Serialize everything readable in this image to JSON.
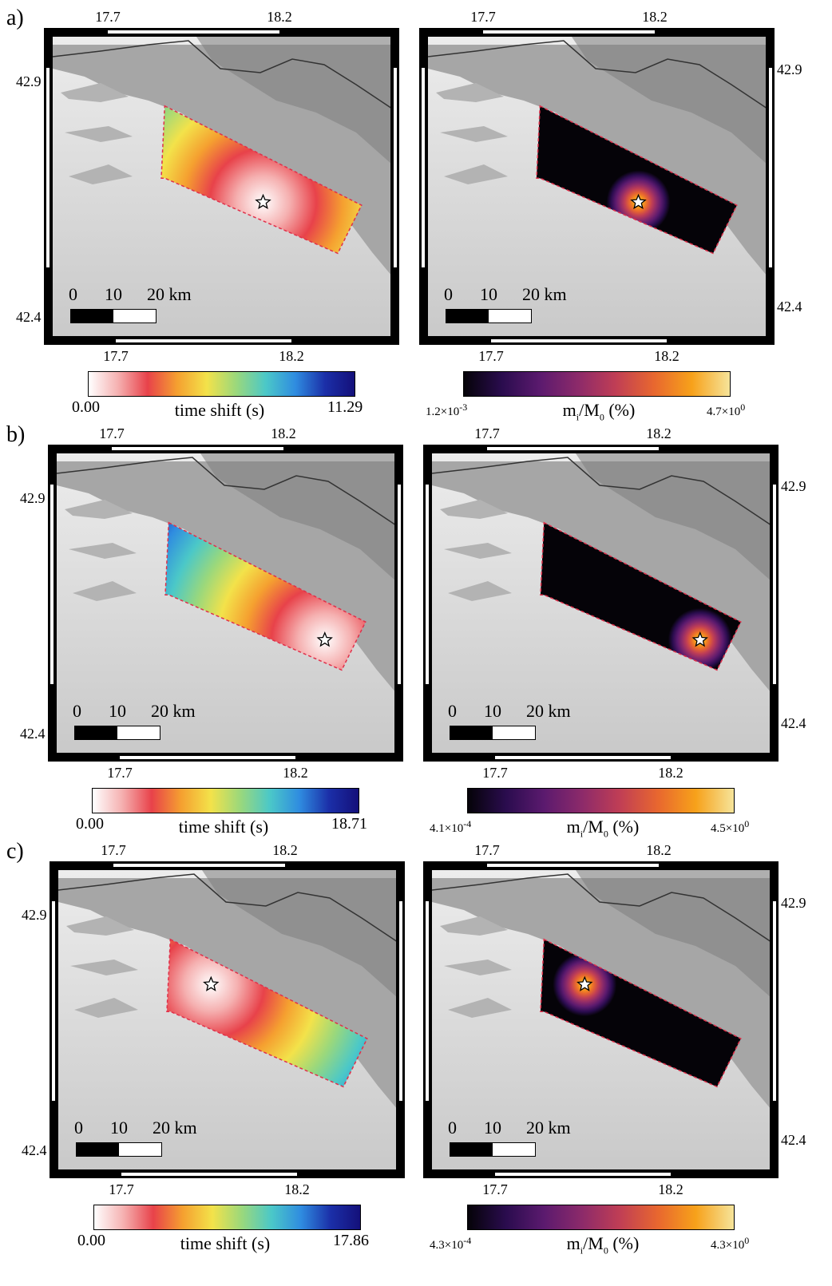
{
  "panels": [
    {
      "label": "a)",
      "top_ticks": [
        "17.7",
        "18.2"
      ],
      "bottom_ticks": [
        "17.7",
        "18.2"
      ],
      "lat_ticks": [
        "42.9",
        "42.4"
      ],
      "scale": {
        "n0": "0",
        "n1": "10",
        "n2": "20 km"
      },
      "left": {
        "colorbar": {
          "min": "0.00",
          "max": "11.29",
          "label": "time shift (s)"
        },
        "hypocenter": [
          0.62,
          0.55
        ]
      },
      "right": {
        "colorbar": {
          "min": "1.2×10",
          "min_exp": "-3",
          "max": "4.7×10",
          "max_exp": "0",
          "label_m": "m",
          "label_i": "i",
          "label_slash": "/M",
          "label_0": "0",
          "label_rest": " (%)"
        },
        "hypocenter": [
          0.62,
          0.55
        ]
      }
    },
    {
      "label": "b)",
      "top_ticks": [
        "17.7",
        "18.2"
      ],
      "bottom_ticks": [
        "17.7",
        "18.2"
      ],
      "lat_ticks": [
        "42.9",
        "42.4"
      ],
      "scale": {
        "n0": "0",
        "n1": "10",
        "n2": "20 km"
      },
      "left": {
        "colorbar": {
          "min": "0.00",
          "max": "18.71",
          "label": "time shift (s)"
        },
        "hypocenter": [
          0.79,
          0.62
        ]
      },
      "right": {
        "colorbar": {
          "min": "4.1×10",
          "min_exp": "-4",
          "max": "4.5×10",
          "max_exp": "0",
          "label_m": "m",
          "label_i": "i",
          "label_slash": "/M",
          "label_0": "0",
          "label_rest": " (%)"
        },
        "hypocenter": [
          0.79,
          0.62
        ]
      }
    },
    {
      "label": "c)",
      "top_ticks": [
        "17.7",
        "18.2"
      ],
      "bottom_ticks": [
        "17.7",
        "18.2"
      ],
      "lat_ticks": [
        "42.9",
        "42.4"
      ],
      "scale": {
        "n0": "0",
        "n1": "10",
        "n2": "20 km"
      },
      "left": {
        "colorbar": {
          "min": "0.00",
          "max": "17.86",
          "label": "time shift (s)"
        },
        "hypocenter": [
          0.45,
          0.38
        ]
      },
      "right": {
        "colorbar": {
          "min": "4.3×10",
          "min_exp": "-4",
          "max": "4.3×10",
          "max_exp": "0",
          "label_m": "m",
          "label_i": "i",
          "label_slash": "/M",
          "label_0": "0",
          "label_rest": " (%)"
        },
        "hypocenter": [
          0.45,
          0.38
        ]
      }
    }
  ],
  "colors": {
    "time_shift": [
      "#ffffff",
      "#f5b0b0",
      "#e8424a",
      "#f5a030",
      "#f3e24a",
      "#9ad87c",
      "#4bc8c8",
      "#2f8ce0",
      "#1b2fa8",
      "#14107a"
    ],
    "moment": [
      "#050308",
      "#2a0c4e",
      "#5b1a6e",
      "#8c2a6a",
      "#c03e55",
      "#e8672f",
      "#f7a11a",
      "#f6e49a"
    ],
    "land": "#9a9a9a",
    "sea": "#e3e3e3",
    "fault_outline": "#e0304a"
  }
}
